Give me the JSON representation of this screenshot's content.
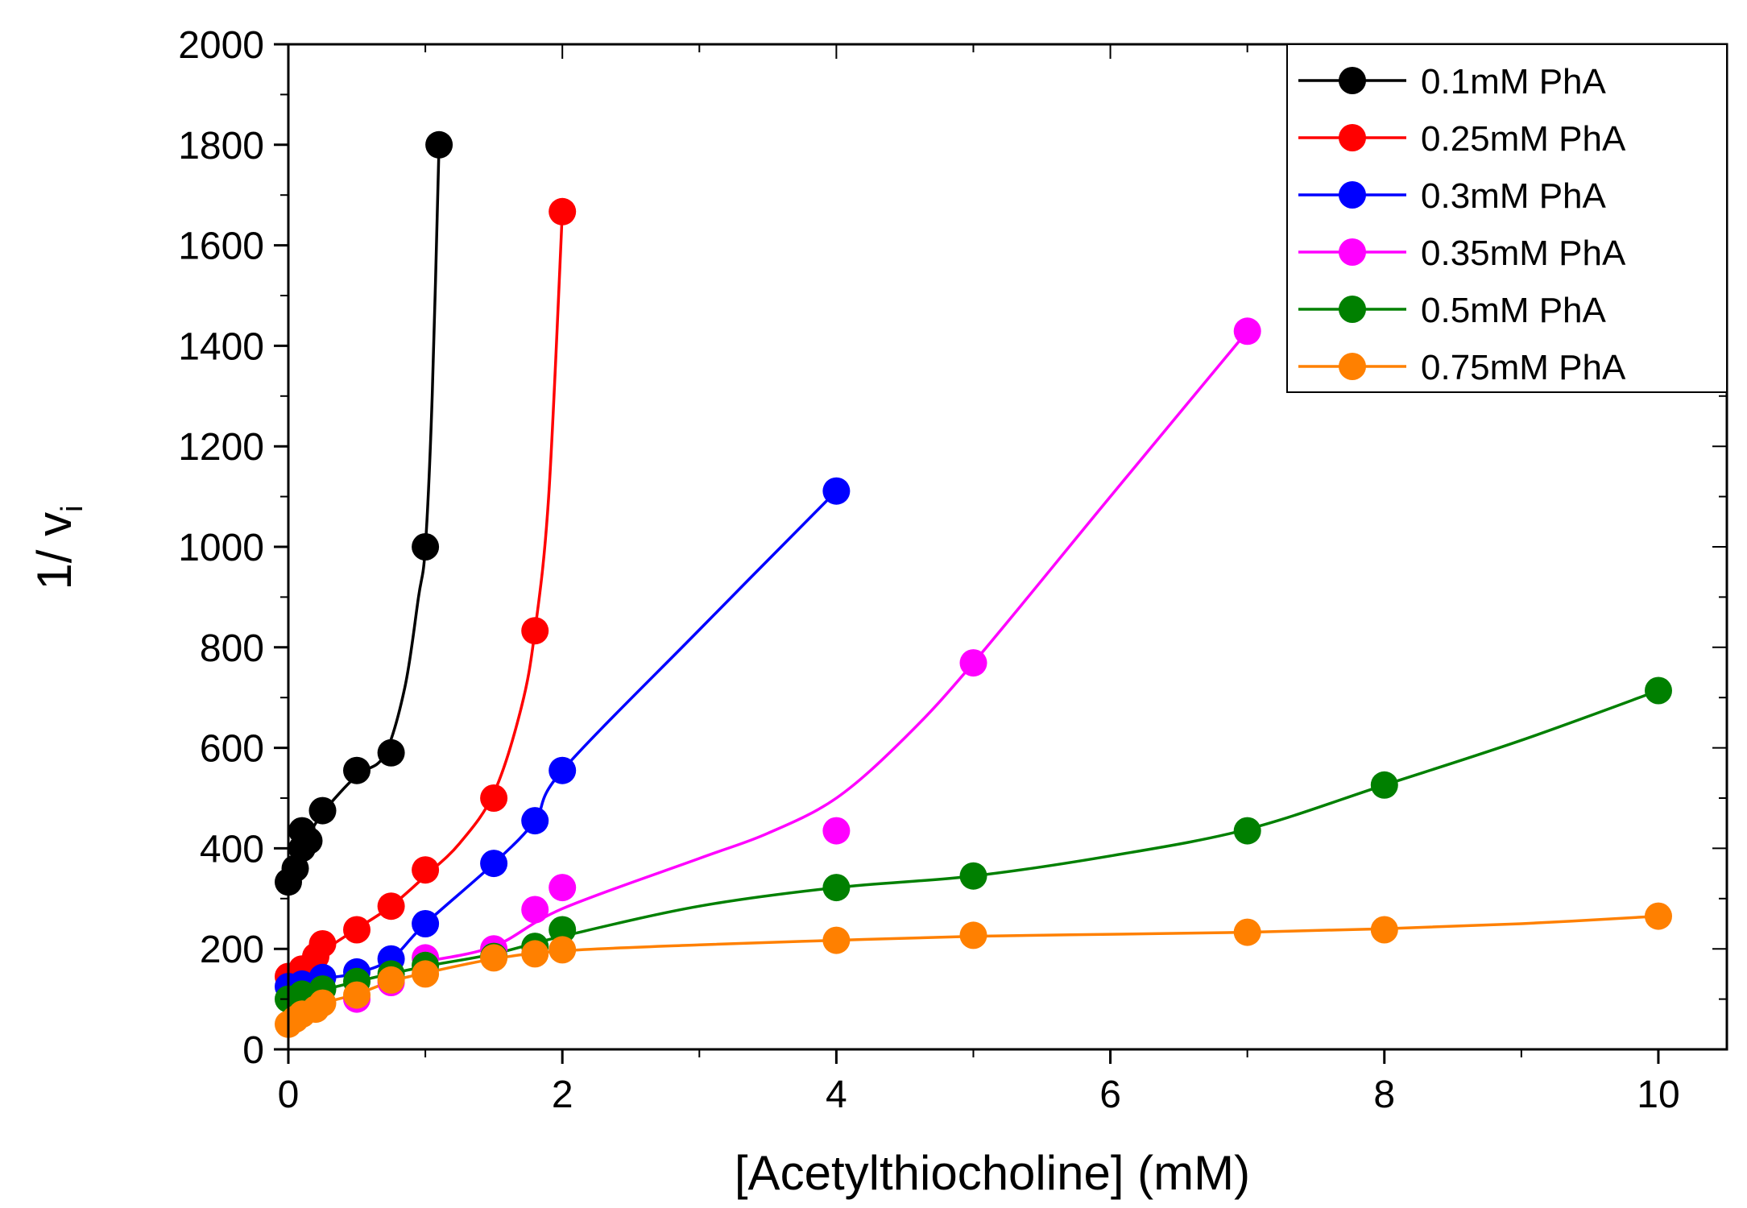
{
  "chart_data": {
    "type": "line",
    "xlabel": "[Acetylthiocholine] (mM)",
    "ylabel_main": "1/ v",
    "ylabel_sub": "i",
    "xlim": [
      0,
      10.5
    ],
    "ylim": [
      0,
      2000
    ],
    "xticks": [
      0,
      2,
      4,
      6,
      8,
      10
    ],
    "yticks": [
      0,
      200,
      400,
      600,
      800,
      1000,
      1200,
      1400,
      1600,
      1800,
      2000
    ],
    "xtick_labels": [
      "0",
      "2",
      "4",
      "6",
      "8",
      "10"
    ],
    "ytick_labels": [
      "0",
      "200",
      "400",
      "600",
      "800",
      "1000",
      "1200",
      "1400",
      "1600",
      "1800",
      "2000"
    ],
    "grid": false,
    "legend_position": "top-right",
    "series": [
      {
        "name": "0.1mM PhA",
        "color": "#000000",
        "points": [
          [
            0,
            333
          ],
          [
            0.05,
            360
          ],
          [
            0.1,
            400
          ],
          [
            0.1,
            435
          ],
          [
            0.15,
            415
          ],
          [
            0.25,
            475
          ],
          [
            0.5,
            555
          ],
          [
            0.75,
            590
          ],
          [
            1.0,
            1000
          ],
          [
            1.1,
            1800
          ]
        ],
        "curve": [
          [
            0,
            333
          ],
          [
            0.1,
            400
          ],
          [
            0.25,
            470
          ],
          [
            0.5,
            545
          ],
          [
            0.7,
            585
          ],
          [
            0.85,
            720
          ],
          [
            0.95,
            900
          ],
          [
            1.0,
            1000
          ],
          [
            1.05,
            1300
          ],
          [
            1.1,
            1800
          ]
        ]
      },
      {
        "name": "0.25mM PhA",
        "color": "#ff0000",
        "points": [
          [
            0,
            145
          ],
          [
            0.1,
            160
          ],
          [
            0.2,
            185
          ],
          [
            0.25,
            210
          ],
          [
            0.5,
            238
          ],
          [
            0.75,
            285
          ],
          [
            1.0,
            357
          ],
          [
            1.5,
            500
          ],
          [
            1.8,
            833
          ],
          [
            2.0,
            1667
          ]
        ],
        "curve": [
          [
            0,
            145
          ],
          [
            0.25,
            195
          ],
          [
            0.5,
            240
          ],
          [
            0.75,
            285
          ],
          [
            1.0,
            345
          ],
          [
            1.25,
            410
          ],
          [
            1.5,
            510
          ],
          [
            1.7,
            680
          ],
          [
            1.8,
            833
          ],
          [
            1.9,
            1100
          ],
          [
            2.0,
            1667
          ]
        ]
      },
      {
        "name": "0.3mM PhA",
        "color": "#0000ff",
        "points": [
          [
            0,
            125
          ],
          [
            0.1,
            130
          ],
          [
            0.25,
            143
          ],
          [
            0.5,
            154
          ],
          [
            0.75,
            180
          ],
          [
            1.0,
            250
          ],
          [
            1.5,
            370
          ],
          [
            1.8,
            455
          ],
          [
            2.0,
            555
          ],
          [
            4.0,
            1111
          ]
        ],
        "curve": [
          [
            0,
            125
          ],
          [
            0.25,
            140
          ],
          [
            0.5,
            152
          ],
          [
            0.75,
            180
          ],
          [
            1.0,
            250
          ],
          [
            1.5,
            370
          ],
          [
            1.8,
            455
          ],
          [
            2.0,
            555
          ],
          [
            3.0,
            835
          ],
          [
            4.0,
            1111
          ]
        ]
      },
      {
        "name": "0.35mM PhA",
        "color": "#ff00ff",
        "points": [
          [
            0.5,
            100
          ],
          [
            0.75,
            133
          ],
          [
            1.0,
            182
          ],
          [
            1.5,
            200
          ],
          [
            1.8,
            278
          ],
          [
            2.0,
            322
          ],
          [
            4.0,
            435
          ],
          [
            5.0,
            769
          ],
          [
            7.0,
            1429
          ]
        ],
        "curve": [
          [
            1.0,
            175
          ],
          [
            1.5,
            205
          ],
          [
            2.0,
            280
          ],
          [
            3.0,
            380
          ],
          [
            3.5,
            430
          ],
          [
            4.0,
            500
          ],
          [
            4.5,
            620
          ],
          [
            5.0,
            769
          ],
          [
            6.0,
            1100
          ],
          [
            7.0,
            1429
          ]
        ]
      },
      {
        "name": "0.5mM PhA",
        "color": "#008000",
        "points": [
          [
            0,
            100
          ],
          [
            0.1,
            110
          ],
          [
            0.25,
            120
          ],
          [
            0.5,
            135
          ],
          [
            0.75,
            150
          ],
          [
            1.0,
            167
          ],
          [
            1.5,
            185
          ],
          [
            1.8,
            205
          ],
          [
            2.0,
            238
          ],
          [
            4.0,
            322
          ],
          [
            5.0,
            345
          ],
          [
            7.0,
            435
          ],
          [
            8.0,
            526
          ],
          [
            10.0,
            714
          ]
        ],
        "curve": [
          [
            0,
            100
          ],
          [
            0.5,
            135
          ],
          [
            1.0,
            165
          ],
          [
            1.5,
            190
          ],
          [
            2.0,
            225
          ],
          [
            3.0,
            285
          ],
          [
            4.0,
            322
          ],
          [
            5.0,
            345
          ],
          [
            6.0,
            385
          ],
          [
            7.0,
            438
          ],
          [
            8.0,
            526
          ],
          [
            9.0,
            615
          ],
          [
            10.0,
            714
          ]
        ]
      },
      {
        "name": "0.75mM PhA",
        "color": "#ff8000",
        "points": [
          [
            0,
            50
          ],
          [
            0.05,
            60
          ],
          [
            0.1,
            70
          ],
          [
            0.2,
            80
          ],
          [
            0.25,
            92
          ],
          [
            0.5,
            108
          ],
          [
            0.75,
            138
          ],
          [
            1.0,
            150
          ],
          [
            1.5,
            182
          ],
          [
            1.8,
            190
          ],
          [
            2.0,
            198
          ],
          [
            4.0,
            217
          ],
          [
            5.0,
            227
          ],
          [
            7.0,
            233
          ],
          [
            8.0,
            238
          ],
          [
            10.0,
            265
          ]
        ],
        "curve": [
          [
            0,
            50
          ],
          [
            0.25,
            90
          ],
          [
            0.5,
            110
          ],
          [
            0.75,
            135
          ],
          [
            1.0,
            152
          ],
          [
            1.5,
            180
          ],
          [
            2.0,
            196
          ],
          [
            3.0,
            208
          ],
          [
            4.0,
            217
          ],
          [
            5.0,
            225
          ],
          [
            6.0,
            229
          ],
          [
            7.0,
            233
          ],
          [
            8.0,
            240
          ],
          [
            9.0,
            250
          ],
          [
            10.0,
            265
          ]
        ]
      }
    ]
  }
}
